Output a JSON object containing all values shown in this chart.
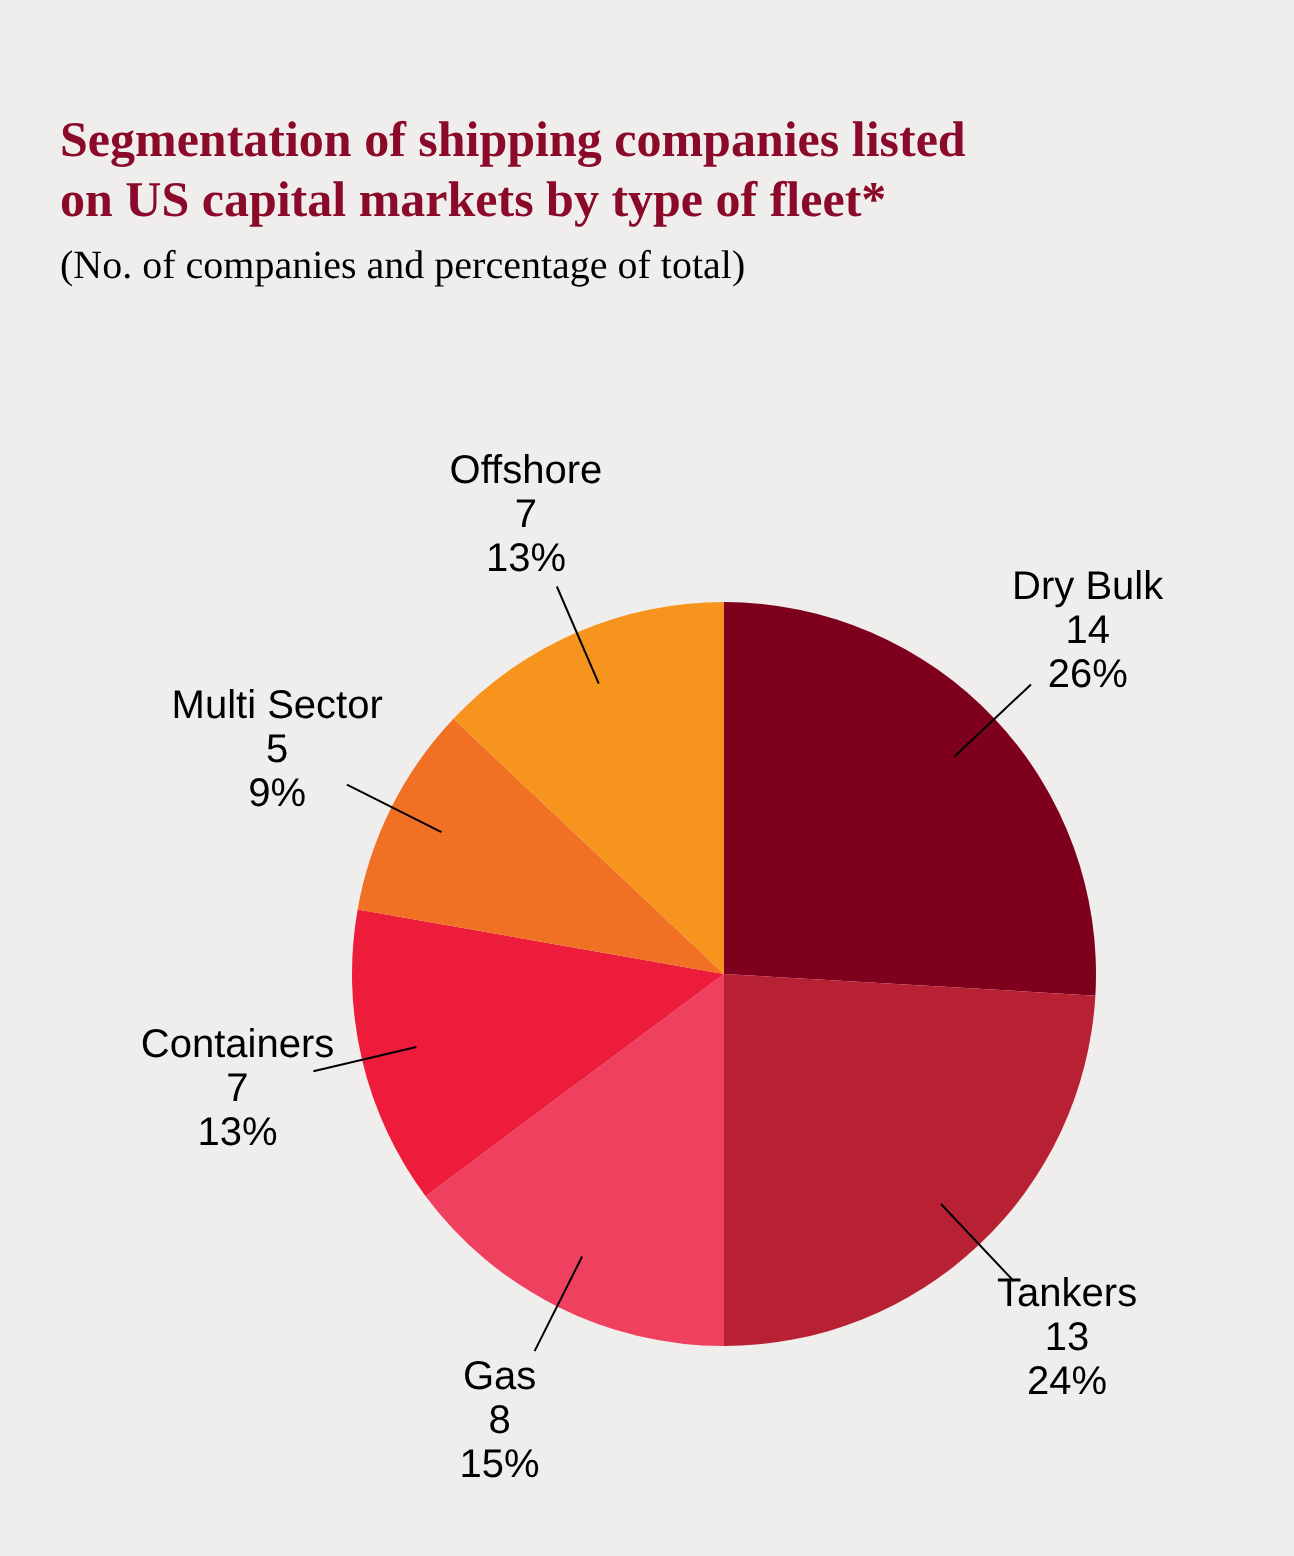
{
  "chart_data": {
    "type": "pie",
    "title": "Segmentation of shipping companies listed\non US capital markets by type of fleet*",
    "subtitle": "(No. of companies and percentage of total)",
    "categories": [
      "Dry Bulk",
      "Tankers",
      "Gas",
      "Containers",
      "Multi Sector",
      "Offshore"
    ],
    "values": [
      14,
      13,
      8,
      7,
      5,
      7
    ],
    "colors": [
      "#7f001c",
      "#b82033",
      "#ef4060",
      "#ed1c3a",
      "#f07024",
      "#f7941d"
    ],
    "value_labels": [
      "14\n26%",
      "13\n24%",
      "8\n15%",
      "7\n13%",
      "5\n9%",
      "7\n13%"
    ]
  }
}
